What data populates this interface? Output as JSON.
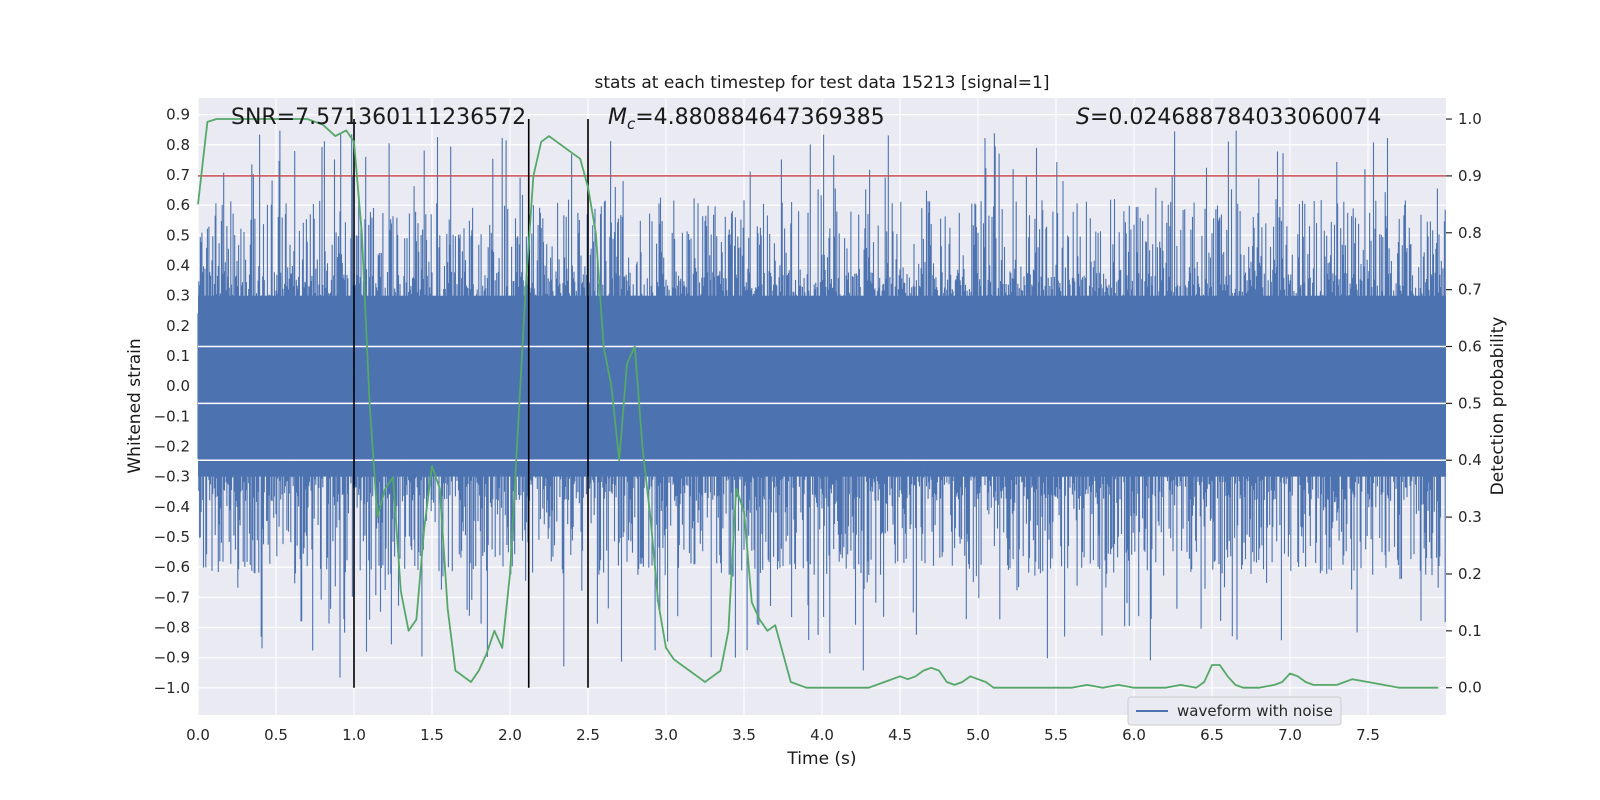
{
  "chart_data": {
    "type": "line",
    "title": "stats at each timestep for test data 15213 [signal=1]",
    "xlabel": "Time (s)",
    "ylabel_left": "Whitened strain",
    "ylabel_right": "Detection probability",
    "xlim": [
      0,
      8
    ],
    "ylim_left": [
      -1.09,
      0.955
    ],
    "ylim_right": [
      -0.048,
      1.037
    ],
    "x_ticks": [
      "0.0",
      "0.5",
      "1.0",
      "1.5",
      "2.0",
      "2.5",
      "3.0",
      "3.5",
      "4.0",
      "4.5",
      "5.0",
      "5.5",
      "6.0",
      "6.5",
      "7.0",
      "7.5"
    ],
    "x_tick_values": [
      0,
      0.5,
      1,
      1.5,
      2,
      2.5,
      3,
      3.5,
      4,
      4.5,
      5,
      5.5,
      6,
      6.5,
      7,
      7.5
    ],
    "y_left_ticks": [
      "0.9",
      "0.8",
      "0.7",
      "0.6",
      "0.5",
      "0.4",
      "0.3",
      "0.2",
      "0.1",
      "0.0",
      "−0.1",
      "−0.2",
      "−0.3",
      "−0.4",
      "−0.5",
      "−0.6",
      "−0.7",
      "−0.8",
      "−0.9",
      "−1.0"
    ],
    "y_left_tick_values": [
      0.9,
      0.8,
      0.7,
      0.6,
      0.5,
      0.4,
      0.3,
      0.2,
      0.1,
      0.0,
      -0.1,
      -0.2,
      -0.3,
      -0.4,
      -0.5,
      -0.6,
      -0.7,
      -0.8,
      -0.9,
      -1.0
    ],
    "y_right_ticks": [
      "1.0",
      "0.9",
      "0.8",
      "0.7",
      "0.6",
      "0.5",
      "0.4",
      "0.3",
      "0.2",
      "0.1",
      "0.0"
    ],
    "y_right_tick_values": [
      1.0,
      0.9,
      0.8,
      0.7,
      0.6,
      0.5,
      0.4,
      0.3,
      0.2,
      0.1,
      0.0
    ],
    "annotations": {
      "snr": "SNR=7.571360111236572",
      "mc_prefix": "M",
      "mc_sub": "c",
      "mc_value": "=4.880884647369385",
      "s_prefix": "S",
      "s_value": "=0.024688784033060074"
    },
    "threshold": {
      "axis": "right",
      "value": 0.9,
      "color": "#c44e52"
    },
    "vertical_lines": [
      1.0,
      2.12,
      2.5
    ],
    "series": [
      {
        "name": "waveform with noise",
        "axis": "left",
        "color": "#4c72b0",
        "kind": "noise_envelope",
        "core_amplitude": 0.3,
        "max_spike": 0.85,
        "min_spike": -1.0
      },
      {
        "name": "detection probability",
        "axis": "right",
        "color": "#55a868",
        "x": [
          0.0,
          0.06,
          0.12,
          0.2,
          0.3,
          0.4,
          0.5,
          0.6,
          0.7,
          0.8,
          0.88,
          0.95,
          1.0,
          1.05,
          1.1,
          1.15,
          1.2,
          1.25,
          1.3,
          1.35,
          1.4,
          1.45,
          1.5,
          1.55,
          1.6,
          1.65,
          1.7,
          1.75,
          1.8,
          1.85,
          1.9,
          1.95,
          2.0,
          2.05,
          2.1,
          2.15,
          2.2,
          2.25,
          2.3,
          2.35,
          2.4,
          2.45,
          2.5,
          2.55,
          2.6,
          2.65,
          2.7,
          2.75,
          2.8,
          2.85,
          2.9,
          2.95,
          3.0,
          3.05,
          3.1,
          3.15,
          3.2,
          3.25,
          3.3,
          3.35,
          3.4,
          3.45,
          3.5,
          3.55,
          3.6,
          3.65,
          3.7,
          3.75,
          3.8,
          3.9,
          4.0,
          4.1,
          4.2,
          4.3,
          4.4,
          4.45,
          4.5,
          4.55,
          4.6,
          4.65,
          4.7,
          4.75,
          4.8,
          4.85,
          4.9,
          4.95,
          5.0,
          5.05,
          5.1,
          5.2,
          5.3,
          5.4,
          5.5,
          5.6,
          5.7,
          5.8,
          5.9,
          6.0,
          6.1,
          6.2,
          6.3,
          6.4,
          6.45,
          6.5,
          6.55,
          6.6,
          6.65,
          6.7,
          6.8,
          6.9,
          6.95,
          7.0,
          7.05,
          7.1,
          7.15,
          7.2,
          7.3,
          7.35,
          7.4,
          7.5,
          7.6,
          7.7,
          7.8,
          7.95
        ],
        "values": [
          0.85,
          0.995,
          1.0,
          1.0,
          1.0,
          1.0,
          1.0,
          1.0,
          1.0,
          0.99,
          0.97,
          0.98,
          0.96,
          0.8,
          0.5,
          0.3,
          0.35,
          0.37,
          0.17,
          0.1,
          0.12,
          0.28,
          0.39,
          0.35,
          0.14,
          0.03,
          0.02,
          0.01,
          0.03,
          0.06,
          0.1,
          0.07,
          0.2,
          0.45,
          0.7,
          0.9,
          0.96,
          0.97,
          0.96,
          0.95,
          0.94,
          0.93,
          0.88,
          0.8,
          0.6,
          0.53,
          0.4,
          0.57,
          0.6,
          0.42,
          0.3,
          0.15,
          0.07,
          0.05,
          0.04,
          0.03,
          0.02,
          0.01,
          0.02,
          0.03,
          0.1,
          0.35,
          0.31,
          0.15,
          0.12,
          0.1,
          0.11,
          0.06,
          0.01,
          0.0,
          0.0,
          0.0,
          0.0,
          0.0,
          0.01,
          0.015,
          0.02,
          0.015,
          0.02,
          0.03,
          0.035,
          0.03,
          0.01,
          0.005,
          0.01,
          0.02,
          0.015,
          0.01,
          0.0,
          0.0,
          0.0,
          0.0,
          0.0,
          0.0,
          0.005,
          0.0,
          0.005,
          0.0,
          0.0,
          0.0,
          0.005,
          0.0,
          0.01,
          0.04,
          0.04,
          0.02,
          0.005,
          0.0,
          0.0,
          0.005,
          0.01,
          0.025,
          0.02,
          0.01,
          0.005,
          0.005,
          0.005,
          0.01,
          0.015,
          0.01,
          0.005,
          0.0,
          0.0,
          0.0
        ]
      }
    ],
    "legend": {
      "position": "bottom-right",
      "entries": [
        "waveform with noise"
      ]
    }
  }
}
